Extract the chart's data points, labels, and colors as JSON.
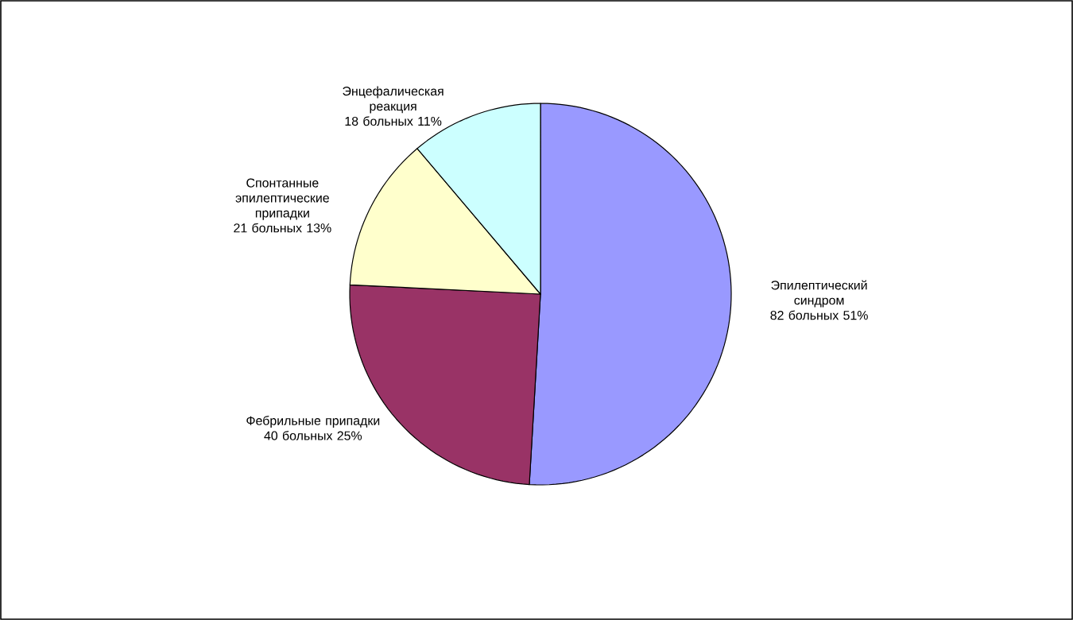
{
  "chart_data": {
    "type": "pie",
    "categories": [
      "Эпилептический синдром",
      "Фебрильные припадки",
      "Спонтанные эпилептические припадки",
      "Энцефалическая реакция"
    ],
    "values": [
      82,
      40,
      21,
      18
    ],
    "value_labels": [
      "82 больных 51%",
      "40 больных 25%",
      "21 больных 13%",
      "18 больных 11%"
    ],
    "colors": [
      "#9999ff",
      "#993366",
      "#ffffcc",
      "#ccffff"
    ]
  }
}
